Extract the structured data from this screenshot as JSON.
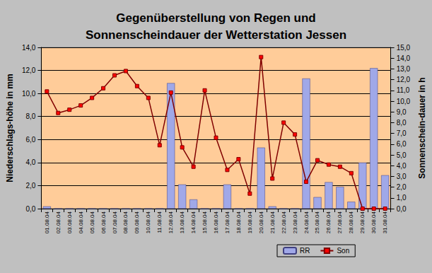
{
  "chart_data": {
    "type": "bar",
    "title": "Gegenüberstellung von Regen und\nSonnenscheindauer der Wetterstation Jessen",
    "y_label": "Niederschlags-höhe in mm",
    "y2_label": "Sonnenschein-dauer in h",
    "categories": [
      "01.08.04",
      "02.08.04",
      "03.08.04",
      "04.08.04",
      "05.08.04",
      "06.08.04",
      "07.08.04",
      "08.08.04",
      "09.08.04",
      "10.08.04",
      "11.08.04",
      "12.08.04",
      "13.08.04",
      "14.08.04",
      "15.08.04",
      "16.08.04",
      "17.08.04",
      "18.08.04",
      "19.08.04",
      "20.08.04",
      "21.08.04",
      "22.08.04",
      "23.08.04",
      "24.08.04",
      "25.08.04",
      "26.08.04",
      "27.08.04",
      "28.08.04",
      "29.08.04",
      "30.08.04",
      "31.08.04"
    ],
    "series": [
      {
        "name": "RR",
        "type": "bar",
        "color": "#a0a8e8",
        "values": [
          0.2,
          0,
          0,
          0,
          0,
          0,
          0,
          0,
          0,
          0,
          0,
          10.9,
          2.1,
          0.8,
          0,
          0,
          2.1,
          0,
          0,
          5.3,
          0.2,
          0,
          0,
          11.3,
          1.0,
          2.3,
          1.9,
          0.6,
          4.0,
          12.2,
          2.9
        ]
      },
      {
        "name": "Son",
        "type": "line",
        "axis": "y2",
        "color": "#800000",
        "marker": "square",
        "values": [
          10.9,
          8.9,
          9.2,
          9.6,
          10.3,
          11.2,
          12.4,
          12.8,
          11.4,
          10.3,
          5.9,
          10.8,
          5.7,
          3.9,
          11.0,
          6.6,
          3.6,
          4.6,
          1.4,
          14.1,
          2.8,
          8.0,
          6.9,
          2.5,
          4.5,
          4.1,
          3.9,
          3.3,
          0.0,
          0.0,
          0.0
        ]
      }
    ],
    "ylim": [
      0,
      14
    ],
    "yticks": [
      {
        "value": 0,
        "label": "0,0"
      },
      {
        "value": 2,
        "label": "2,0"
      },
      {
        "value": 4,
        "label": "4,0"
      },
      {
        "value": 6,
        "label": "6,0"
      },
      {
        "value": 8,
        "label": "8,0"
      },
      {
        "value": 10,
        "label": "10,0"
      },
      {
        "value": 12,
        "label": "12,0"
      },
      {
        "value": 14,
        "label": "14,0"
      }
    ],
    "y2lim": [
      0,
      15
    ],
    "y2ticks": [
      {
        "value": 0,
        "label": "0,0"
      },
      {
        "value": 1,
        "label": "1,0"
      },
      {
        "value": 2,
        "label": "2,0"
      },
      {
        "value": 3,
        "label": "3,0"
      },
      {
        "value": 4,
        "label": "4,0"
      },
      {
        "value": 5,
        "label": "5,0"
      },
      {
        "value": 6,
        "label": "6,0"
      },
      {
        "value": 7,
        "label": "7,0"
      },
      {
        "value": 8,
        "label": "8,0"
      },
      {
        "value": 9,
        "label": "9,0"
      },
      {
        "value": 10,
        "label": "10,0"
      },
      {
        "value": 11,
        "label": "11,0"
      },
      {
        "value": 12,
        "label": "12,0"
      },
      {
        "value": 13,
        "label": "13,0"
      },
      {
        "value": 14,
        "label": "14,0"
      },
      {
        "value": 15,
        "label": "15,0"
      }
    ],
    "grid": true,
    "legend": "bottom"
  }
}
